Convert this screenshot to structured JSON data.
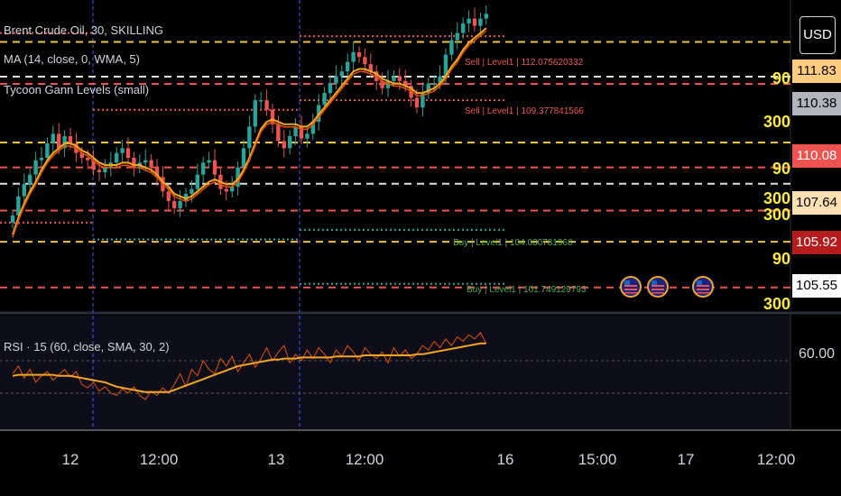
{
  "legend": {
    "symbol": "Brent Crude Oil, 30, SKILLING",
    "ma": "MA (14, close, 0, WMA, 5)",
    "gann": "Tycoon Gann Levels (small)",
    "rsi": "RSI · 15 (60, close, SMA, 30, 2)"
  },
  "currency_button": "USD",
  "price_scale": {
    "tags": [
      {
        "label": "111.83",
        "bg": "#ffcc80",
        "fg": "#000000"
      },
      {
        "label": "110.38",
        "bg": "#b2b5be",
        "fg": "#000000"
      },
      {
        "label": "110.08",
        "bg": "#ef5350",
        "fg": "#ffffff"
      },
      {
        "label": "107.64",
        "bg": "#ffe0b2",
        "fg": "#000000"
      },
      {
        "label": "105.92",
        "bg": "#b71c1c",
        "fg": "#ffffff"
      },
      {
        "label": "105.55",
        "bg": "#ffffff",
        "fg": "#000000"
      }
    ],
    "rsi_tag": "60.00"
  },
  "gann_levels": [
    "90",
    "300",
    "90",
    "300",
    "300",
    "90",
    "300"
  ],
  "level_labels": [
    {
      "text": "Sell | Level1 | 112.075620332",
      "color": "#ef5350"
    },
    {
      "text": "Sell | Level1 | 109.377841566",
      "color": "#ef5350"
    },
    {
      "text": "Buy | Level1 | 104.000781968",
      "color": "#4caf50"
    },
    {
      "text": "Buy | Level1 | 101.749129793",
      "color": "#4caf50"
    }
  ],
  "time_axis": [
    "12",
    "12:00",
    "13",
    "12:00",
    "16",
    "15:00",
    "17",
    "12:00"
  ],
  "colors": {
    "up": "#26a69a",
    "down": "#ef5350",
    "ma": "#f5a623",
    "rsi": "#f5a623",
    "gann_yellow": "#f0c040",
    "gann_red": "#ef5350",
    "gann_white": "#e0e0e0",
    "session_line": "#3d5afe",
    "rsi_bg": "#0e0e1a"
  },
  "flag_icons": [
    "us-flag-icon",
    "us-flag-icon",
    "us-flag-icon"
  ],
  "chart_data": [
    {
      "type": "candlestick",
      "title": "Brent Crude Oil, 30, SKILLING",
      "ylim": [
        100.8,
        113.2
      ],
      "close": [
        104.6,
        105.4,
        105.9,
        106.3,
        106.9,
        107.0,
        107.6,
        108.0,
        107.4,
        107.9,
        107.6,
        107.2,
        107.0,
        106.9,
        106.5,
        106.4,
        106.6,
        106.8,
        107.2,
        107.4,
        107.0,
        106.6,
        106.8,
        106.9,
        106.6,
        106.2,
        105.6,
        105.2,
        104.9,
        105.2,
        105.5,
        105.7,
        106.3,
        106.8,
        106.9,
        106.3,
        105.7,
        105.6,
        105.8,
        106.6,
        107.4,
        108.3,
        109.4,
        109.4,
        109.0,
        108.4,
        107.7,
        107.4,
        107.9,
        108.3,
        107.8,
        108.0,
        108.5,
        109.2,
        109.7,
        110.1,
        110.4,
        110.6,
        111.0,
        111.4,
        111.2,
        110.9,
        110.6,
        110.2,
        109.9,
        110.2,
        110.4,
        110.2,
        110.0,
        109.5,
        109.1,
        109.7,
        110.1,
        110.1,
        110.4,
        111.3,
        111.9,
        112.2,
        112.6,
        112.8,
        112.5,
        112.8,
        113.0
      ],
      "ma": [
        103.8,
        104.5,
        105.1,
        105.6,
        106.0,
        106.5,
        106.9,
        107.2,
        107.4,
        107.6,
        107.6,
        107.5,
        107.3,
        107.2,
        107.0,
        106.8,
        106.7,
        106.7,
        106.7,
        106.8,
        106.8,
        106.7,
        106.7,
        106.6,
        106.5,
        106.3,
        106.0,
        105.8,
        105.5,
        105.4,
        105.3,
        105.4,
        105.6,
        105.8,
        106.0,
        106.1,
        106.0,
        105.9,
        105.9,
        106.1,
        106.5,
        107.0,
        107.6,
        108.2,
        108.5,
        108.6,
        108.5,
        108.4,
        108.4,
        108.4,
        108.3,
        108.3,
        108.5,
        108.8,
        109.1,
        109.4,
        109.7,
        110.0,
        110.3,
        110.6,
        110.7,
        110.7,
        110.6,
        110.5,
        110.3,
        110.2,
        110.1,
        110.1,
        110.0,
        109.9,
        109.7,
        109.7,
        109.8,
        109.9,
        110.1,
        110.4,
        110.8,
        111.1,
        111.5,
        111.8,
        112.0,
        112.2,
        112.4
      ],
      "horizontal_levels": [
        112.07,
        111.83,
        110.38,
        110.08,
        109.38,
        107.64,
        106.6,
        105.92,
        104.8,
        104.0,
        103.5,
        101.75,
        101.6
      ]
    },
    {
      "type": "line",
      "title": "RSI · 15 (60, close, SMA, 30, 2)",
      "ylim": [
        0,
        100
      ],
      "rsi_hlines": [
        60,
        30
      ],
      "rsi_raw": [
        48,
        55,
        44,
        52,
        40,
        46,
        50,
        42,
        47,
        52,
        45,
        50,
        38,
        35,
        40,
        32,
        36,
        30,
        28,
        34,
        30,
        36,
        28,
        24,
        32,
        28,
        35,
        30,
        38,
        48,
        36,
        52,
        46,
        60,
        52,
        48,
        62,
        55,
        64,
        50,
        58,
        66,
        54,
        62,
        72,
        60,
        68,
        74,
        58,
        66,
        60,
        70,
        62,
        72,
        66,
        58,
        70,
        64,
        74,
        68,
        60,
        72,
        66,
        62,
        68,
        58,
        72,
        64,
        70,
        62,
        66,
        74,
        70,
        78,
        72,
        80,
        74,
        82,
        78,
        84,
        80,
        86,
        76
      ],
      "rsi_sma": [
        46,
        47,
        47,
        47,
        47,
        47,
        47,
        47,
        46,
        46,
        46,
        45,
        44,
        43,
        42,
        41,
        40,
        38,
        36,
        35,
        34,
        33,
        32,
        31,
        31,
        31,
        31,
        31,
        33,
        35,
        37,
        39,
        41,
        43,
        45,
        47,
        49,
        51,
        53,
        55,
        56,
        57,
        58,
        59,
        60,
        61,
        61,
        62,
        62,
        62,
        63,
        63,
        63,
        63,
        63,
        63,
        64,
        64,
        64,
        64,
        64,
        65,
        65,
        65,
        65,
        65,
        65,
        65,
        65,
        65,
        66,
        66,
        67,
        68,
        69,
        70,
        71,
        72,
        73,
        74,
        75,
        76,
        76
      ]
    }
  ]
}
